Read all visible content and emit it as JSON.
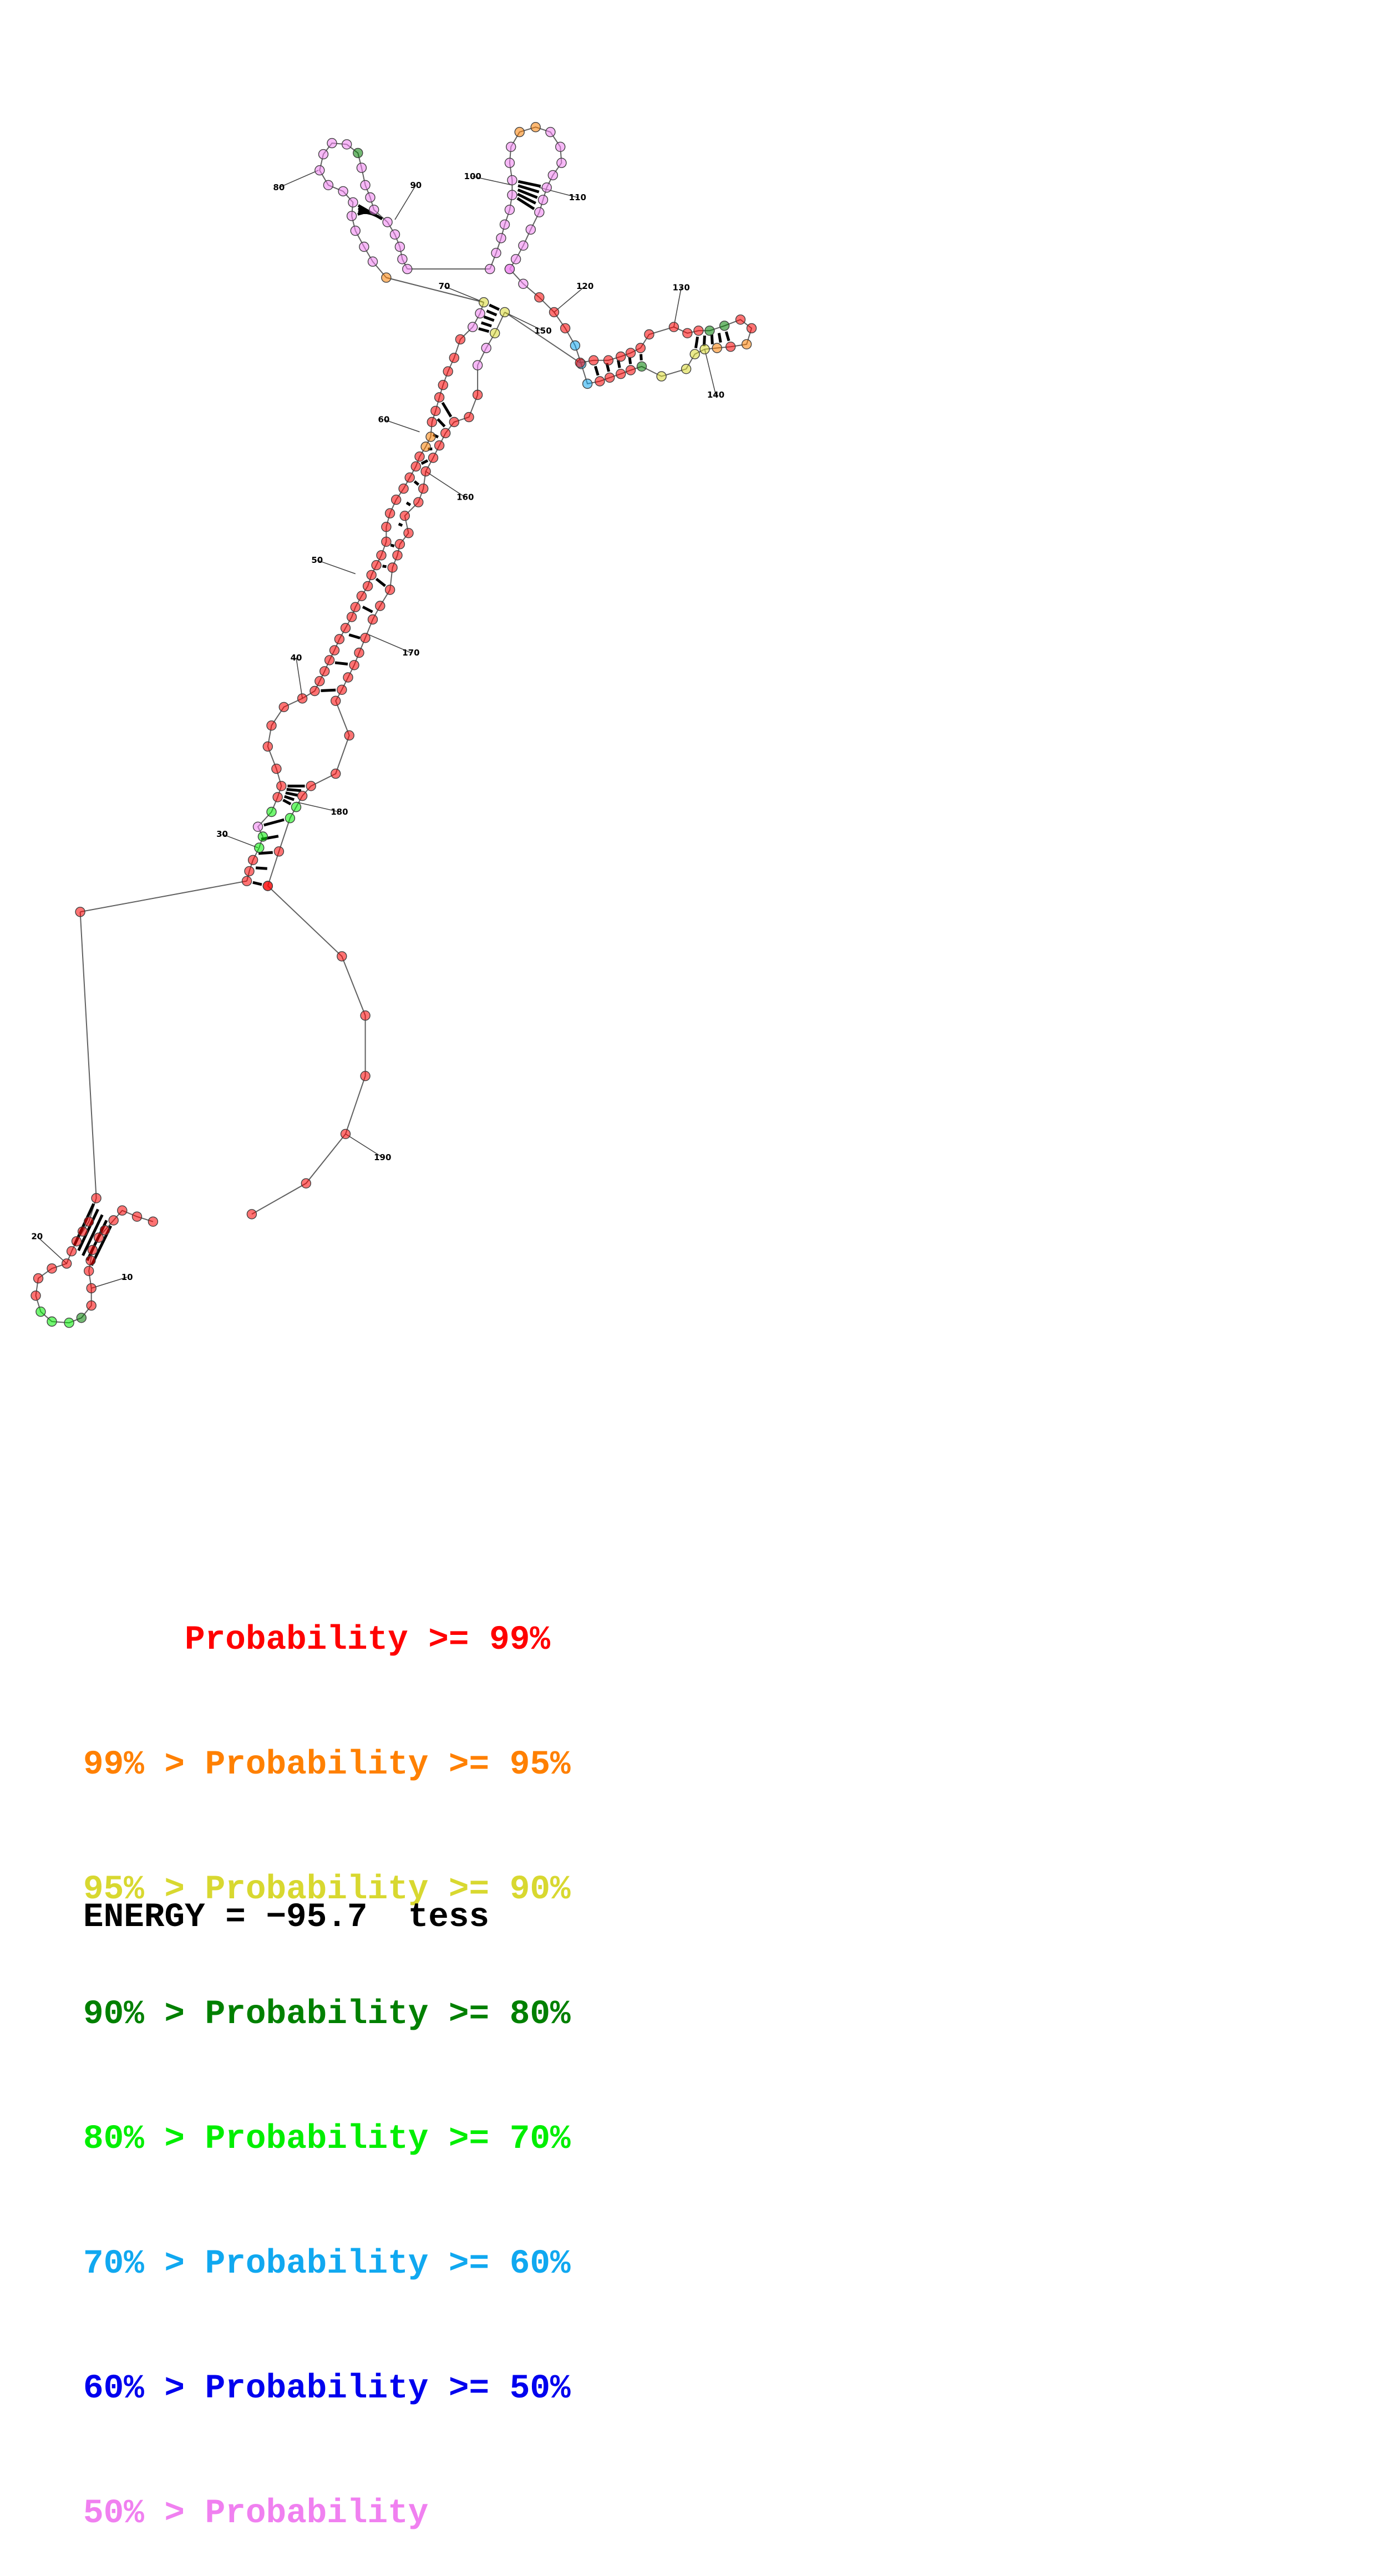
{
  "diagram": {
    "type": "rna-secondary-structure",
    "sequence_length": 193,
    "position_labels": [
      "10",
      "20",
      "30",
      "40",
      "50",
      "60",
      "70",
      "80",
      "90",
      "100",
      "110",
      "120",
      "130",
      "140",
      "150",
      "160",
      "170",
      "180",
      "190"
    ],
    "probability_colors": {
      "p99": "#ff0000",
      "p95": "#ff8000",
      "p90": "#d8d830",
      "p80": "#008000",
      "p70": "#00ee00",
      "p60": "#10a8f0",
      "p50": "#0000ee",
      "below50": "#f080f0"
    }
  },
  "legend": [
    {
      "prefix": "     ",
      "label": "Probability >= 99%",
      "color": "#ff0000"
    },
    {
      "prefix": "99% > ",
      "label": "Probability >= 95%",
      "color": "#ff8000"
    },
    {
      "prefix": "95% > ",
      "label": "Probability >= 90%",
      "color": "#d8d830"
    },
    {
      "prefix": "90% > ",
      "label": "Probability >= 80%",
      "color": "#008000"
    },
    {
      "prefix": "80% > ",
      "label": "Probability >= 70%",
      "color": "#00ee00"
    },
    {
      "prefix": "70% > ",
      "label": "Probability >= 60%",
      "color": "#10a8f0"
    },
    {
      "prefix": "60% > ",
      "label": "Probability >= 50%",
      "color": "#0000ee"
    },
    {
      "prefix": "50% > ",
      "label": "Probability",
      "color": "#f080f0"
    }
  ],
  "energy": {
    "text": "ENERGY = −95.7  tess"
  }
}
